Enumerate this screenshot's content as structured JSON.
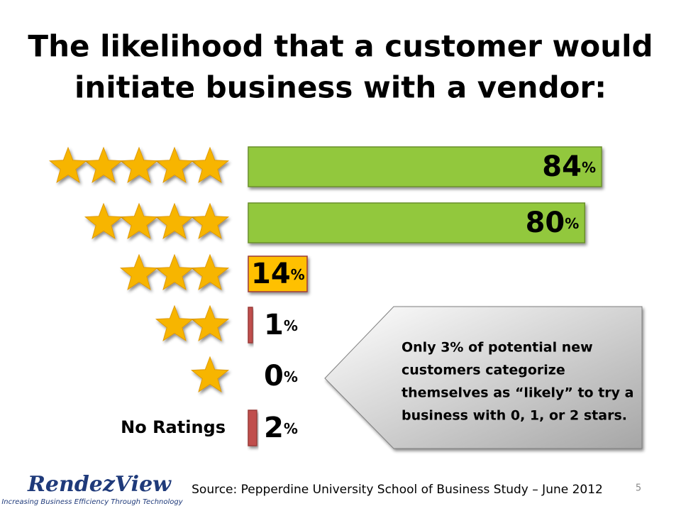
{
  "chart_data": {
    "type": "bar",
    "orientation": "horizontal",
    "title": [
      "The likelihood that a customer would",
      "initiate business with a vendor:"
    ],
    "categories": [
      null,
      null,
      null,
      null,
      null,
      "No Ratings"
    ],
    "stars": [
      5,
      4,
      3,
      2,
      1,
      0
    ],
    "values": [
      84,
      80,
      14,
      1,
      0,
      2
    ],
    "value_labels": [
      "84%",
      "80%",
      "14%",
      "1%",
      "0%",
      "2%"
    ],
    "colors": [
      "#92c83e",
      "#92c83e",
      "#ffc000",
      "#c0504d",
      "#c0504d",
      "#c0504d"
    ],
    "xlim": [
      0,
      84
    ]
  },
  "callout": [
    "Only 3% of potential new",
    "customers categorize",
    "themselves as “likely” to try a",
    "business with 0, 1, or 2 stars."
  ],
  "source": "Source: Pepperdine University School of Business Study – June 2012",
  "page_number": "5",
  "logo": {
    "name": "RendezView",
    "tagline": "Increasing Business Efficiency  Through Technology"
  }
}
